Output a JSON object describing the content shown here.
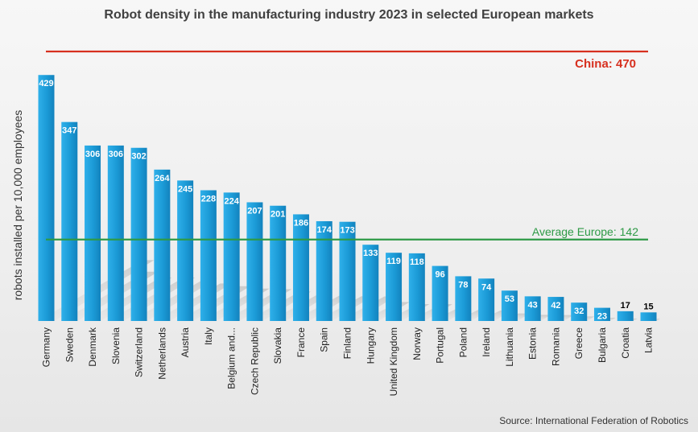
{
  "chart_data": {
    "type": "bar",
    "title": "Robot density in the manufacturing industry 2023 in selected European markets",
    "ylabel": "robots installed per 10,000 employees",
    "xlabel": "",
    "ylim": [
      0,
      470
    ],
    "grid": false,
    "categories": [
      "Germany",
      "Sweden",
      "Denmark",
      "Slovenia",
      "Switzerland",
      "Netherlands",
      "Austria",
      "Italy",
      "Belgium and...",
      "Czech Republic",
      "Slovakia",
      "France",
      "Spain",
      "Finland",
      "Hungary",
      "United Kingdom",
      "Norway",
      "Portugal",
      "Poland",
      "Ireland",
      "Lithuania",
      "Estonia",
      "Romania",
      "Greece",
      "Bulgaria",
      "Croatia",
      "Latvia"
    ],
    "values": [
      429,
      347,
      306,
      306,
      302,
      264,
      245,
      228,
      224,
      207,
      201,
      186,
      174,
      173,
      133,
      119,
      118,
      96,
      78,
      74,
      53,
      43,
      42,
      32,
      23,
      17,
      15
    ],
    "bar_color": "#1b9ad6",
    "reference_lines": [
      {
        "label": "China: 470",
        "value": 470,
        "color": "#d7301f"
      },
      {
        "label": "Average Europe: 142",
        "value": 142,
        "color": "#2e9a46"
      }
    ],
    "source": "Source: International Federation of Robotics"
  }
}
